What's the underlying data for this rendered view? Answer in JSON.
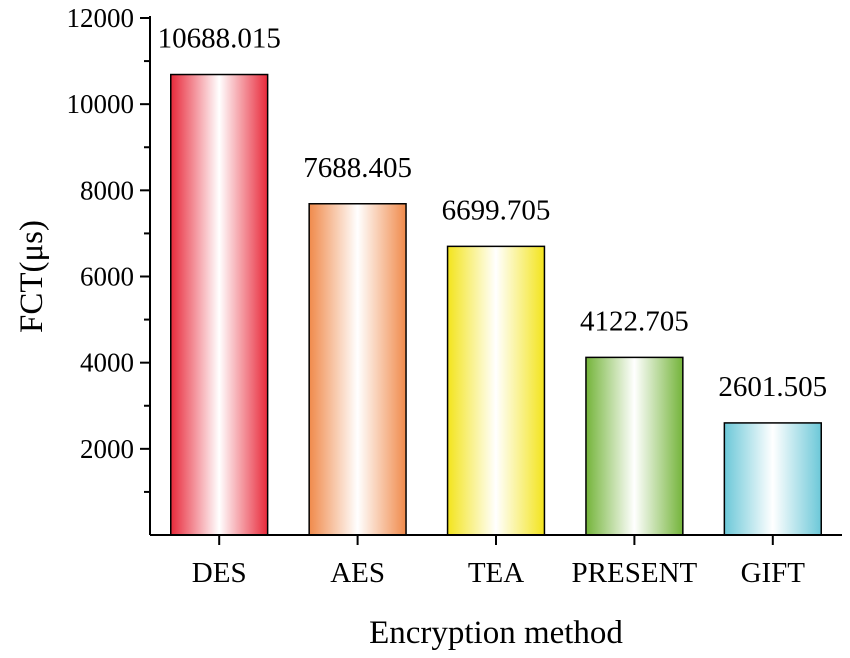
{
  "chart_data": {
    "type": "bar",
    "categories": [
      "DES",
      "AES",
      "TEA",
      "PRESENT",
      "GIFT"
    ],
    "values": [
      10688.015,
      7688.405,
      6699.705,
      4122.705,
      2601.505
    ],
    "data_labels": [
      "10688.015",
      "7688.405",
      "6699.705",
      "4122.705",
      "2601.505"
    ],
    "colors": [
      "#e8293a",
      "#f08a4b",
      "#f3e41c",
      "#74b43a",
      "#6cc8d8"
    ],
    "xlabel": "Encryption method",
    "ylabel": "FCT(μs)",
    "ylim": [
      0,
      12000
    ],
    "yticks": [
      2000,
      4000,
      6000,
      8000,
      10000,
      12000
    ],
    "ytick_labels": [
      "2000",
      "4000",
      "6000",
      "8000",
      "10000",
      "12000"
    ],
    "grid": false,
    "legend": "none"
  }
}
